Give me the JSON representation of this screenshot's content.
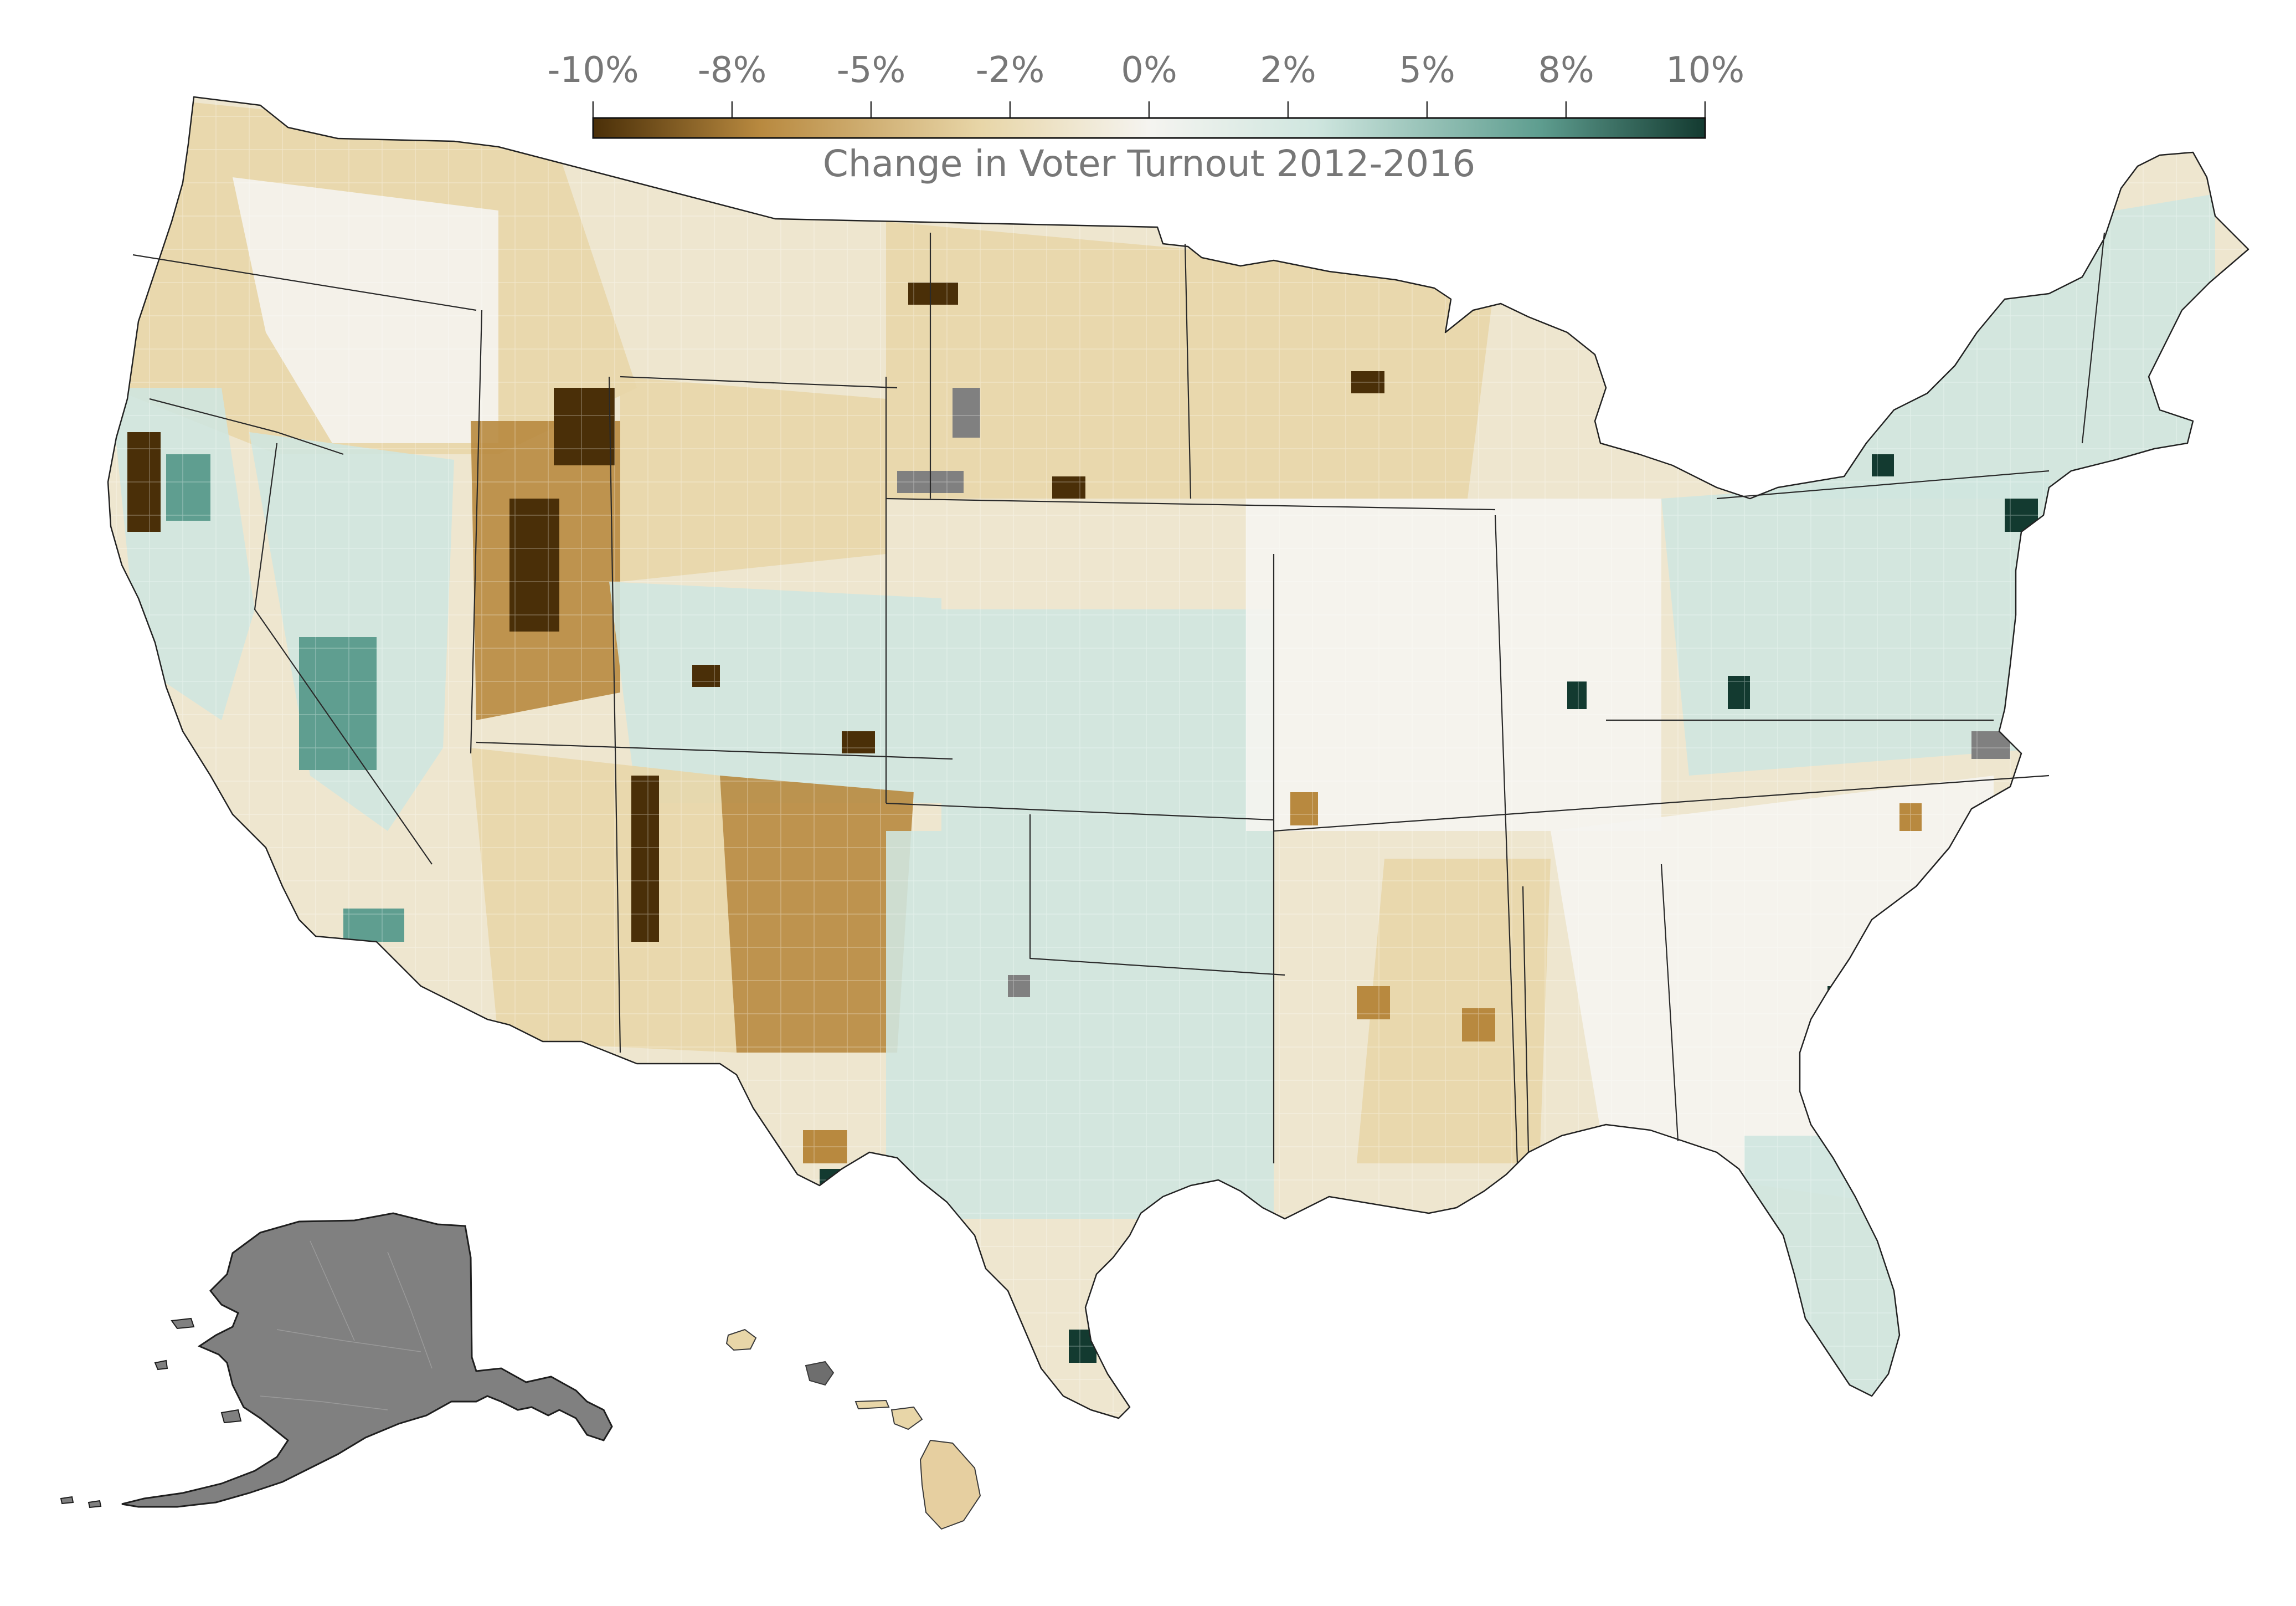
{
  "legend": {
    "title": "Change in Voter Turnout 2012-2016",
    "ticks": [
      "-10%",
      "-8%",
      "-5%",
      "-2%",
      "0%",
      "2%",
      "5%",
      "8%",
      "10%"
    ],
    "domain": [
      -10,
      10
    ],
    "colors": {
      "darkest_negative": "#4a2f08",
      "strong_negative": "#b8893f",
      "mild_negative": "#e8d6a8",
      "neutral": "#f5f4f0",
      "mild_positive": "#cfe6df",
      "strong_positive": "#5f9e90",
      "darkest_positive": "#133a30",
      "no_data": "#808080"
    }
  },
  "map": {
    "regions": [
      "contiguous-us",
      "alaska",
      "hawaii"
    ],
    "no_data_regions": [
      "alaska"
    ],
    "outline_color": "#2a2a2a"
  }
}
